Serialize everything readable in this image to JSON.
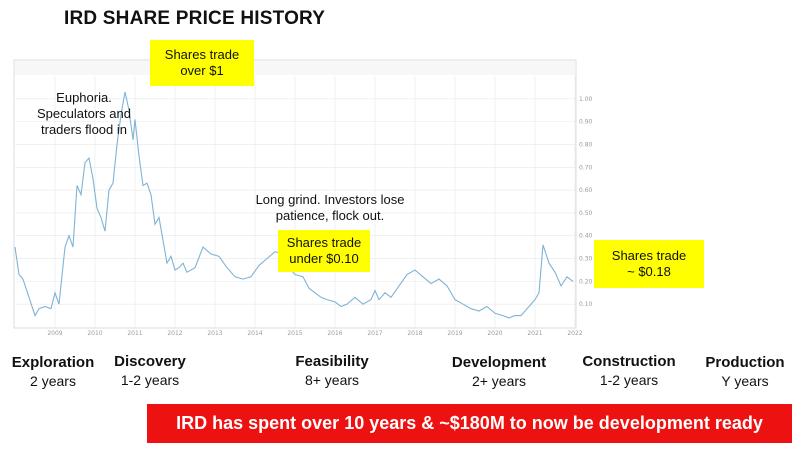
{
  "title": "IRD SHARE PRICE HISTORY",
  "annotations": {
    "euphoria": [
      "Euphoria.",
      "Speculators and",
      "traders flood in"
    ],
    "long_grind": [
      "Long grind. Investors lose",
      "patience, flock out."
    ],
    "over_1": [
      "Shares trade",
      "over $1"
    ],
    "under_010": [
      "Shares trade",
      "under $0.10"
    ],
    "approx_018": [
      "Shares trade",
      "~ $0.18"
    ]
  },
  "stages": [
    {
      "name": "Exploration",
      "duration": "2 years"
    },
    {
      "name": "Discovery",
      "duration": "1-2 years"
    },
    {
      "name": "Feasibility",
      "duration": "8+ years"
    },
    {
      "name": "Development",
      "duration": "2+ years"
    },
    {
      "name": "Construction",
      "duration": "1-2 years"
    },
    {
      "name": "Production",
      "duration": "Y years"
    }
  ],
  "banner": "IRD has spent over 10 years & ~$180M to now be development ready",
  "colors": {
    "line": "#7fb3d5",
    "highlight": "#ffff00",
    "banner": "#ee1111",
    "grid": "#e8e8e8"
  },
  "chart_data": {
    "type": "line",
    "title": "",
    "xlabel": "",
    "ylabel": "",
    "xlim": [
      2008,
      2022
    ],
    "ylim": [
      0,
      1.1
    ],
    "x_ticks": [
      "2009",
      "2010",
      "2011",
      "2012",
      "2013",
      "2014",
      "2015",
      "2016",
      "2017",
      "2018",
      "2019",
      "2020",
      "2021",
      "2022"
    ],
    "y_ticks": [
      "1.00",
      "0.90",
      "0.80",
      "0.70",
      "0.60",
      "0.50",
      "0.40",
      "0.30",
      "0.20",
      "0.10"
    ],
    "grid": true,
    "series": [
      {
        "x": [
          2008.0,
          2008.1,
          2008.2,
          2008.35,
          2008.5,
          2008.6,
          2008.75,
          2008.9,
          2009.0,
          2009.1,
          2009.25,
          2009.35,
          2009.45,
          2009.55,
          2009.65,
          2009.75,
          2009.85,
          2009.95,
          2010.05,
          2010.15,
          2010.25,
          2010.35,
          2010.45,
          2010.55,
          2010.65,
          2010.75,
          2010.85,
          2010.95,
          2011.0,
          2011.1,
          2011.2,
          2011.3,
          2011.4,
          2011.5,
          2011.6,
          2011.7,
          2011.8,
          2011.9,
          2012.0,
          2012.1,
          2012.2,
          2012.3,
          2012.5,
          2012.7,
          2012.9,
          2013.1,
          2013.3,
          2013.5,
          2013.7,
          2013.9,
          2014.1,
          2014.3,
          2014.5,
          2014.7,
          2014.85,
          2015.0,
          2015.2,
          2015.35,
          2015.5,
          2015.65,
          2015.8,
          2016.0,
          2016.15,
          2016.3,
          2016.5,
          2016.7,
          2016.9,
          2017.0,
          2017.1,
          2017.25,
          2017.4,
          2017.6,
          2017.8,
          2018.0,
          2018.2,
          2018.4,
          2018.6,
          2018.8,
          2019.0,
          2019.2,
          2019.4,
          2019.6,
          2019.8,
          2020.0,
          2020.2,
          2020.35,
          2020.5,
          2020.65,
          2020.75,
          2020.85,
          2021.0,
          2021.1,
          2021.2,
          2021.35,
          2021.5,
          2021.65,
          2021.8,
          2021.95
        ],
        "y": [
          0.35,
          0.23,
          0.21,
          0.13,
          0.05,
          0.08,
          0.09,
          0.08,
          0.15,
          0.1,
          0.35,
          0.4,
          0.35,
          0.62,
          0.58,
          0.72,
          0.74,
          0.65,
          0.52,
          0.48,
          0.42,
          0.6,
          0.63,
          0.8,
          0.93,
          1.03,
          0.95,
          0.82,
          0.91,
          0.75,
          0.62,
          0.63,
          0.58,
          0.45,
          0.48,
          0.38,
          0.28,
          0.31,
          0.25,
          0.26,
          0.28,
          0.24,
          0.26,
          0.35,
          0.32,
          0.31,
          0.26,
          0.22,
          0.21,
          0.22,
          0.27,
          0.3,
          0.33,
          0.32,
          0.26,
          0.23,
          0.22,
          0.17,
          0.15,
          0.13,
          0.12,
          0.11,
          0.09,
          0.1,
          0.13,
          0.1,
          0.12,
          0.16,
          0.12,
          0.15,
          0.13,
          0.18,
          0.23,
          0.25,
          0.22,
          0.19,
          0.21,
          0.18,
          0.12,
          0.1,
          0.08,
          0.07,
          0.09,
          0.06,
          0.05,
          0.04,
          0.05,
          0.05,
          0.07,
          0.09,
          0.12,
          0.15,
          0.36,
          0.28,
          0.24,
          0.18,
          0.22,
          0.2
        ]
      }
    ]
  }
}
